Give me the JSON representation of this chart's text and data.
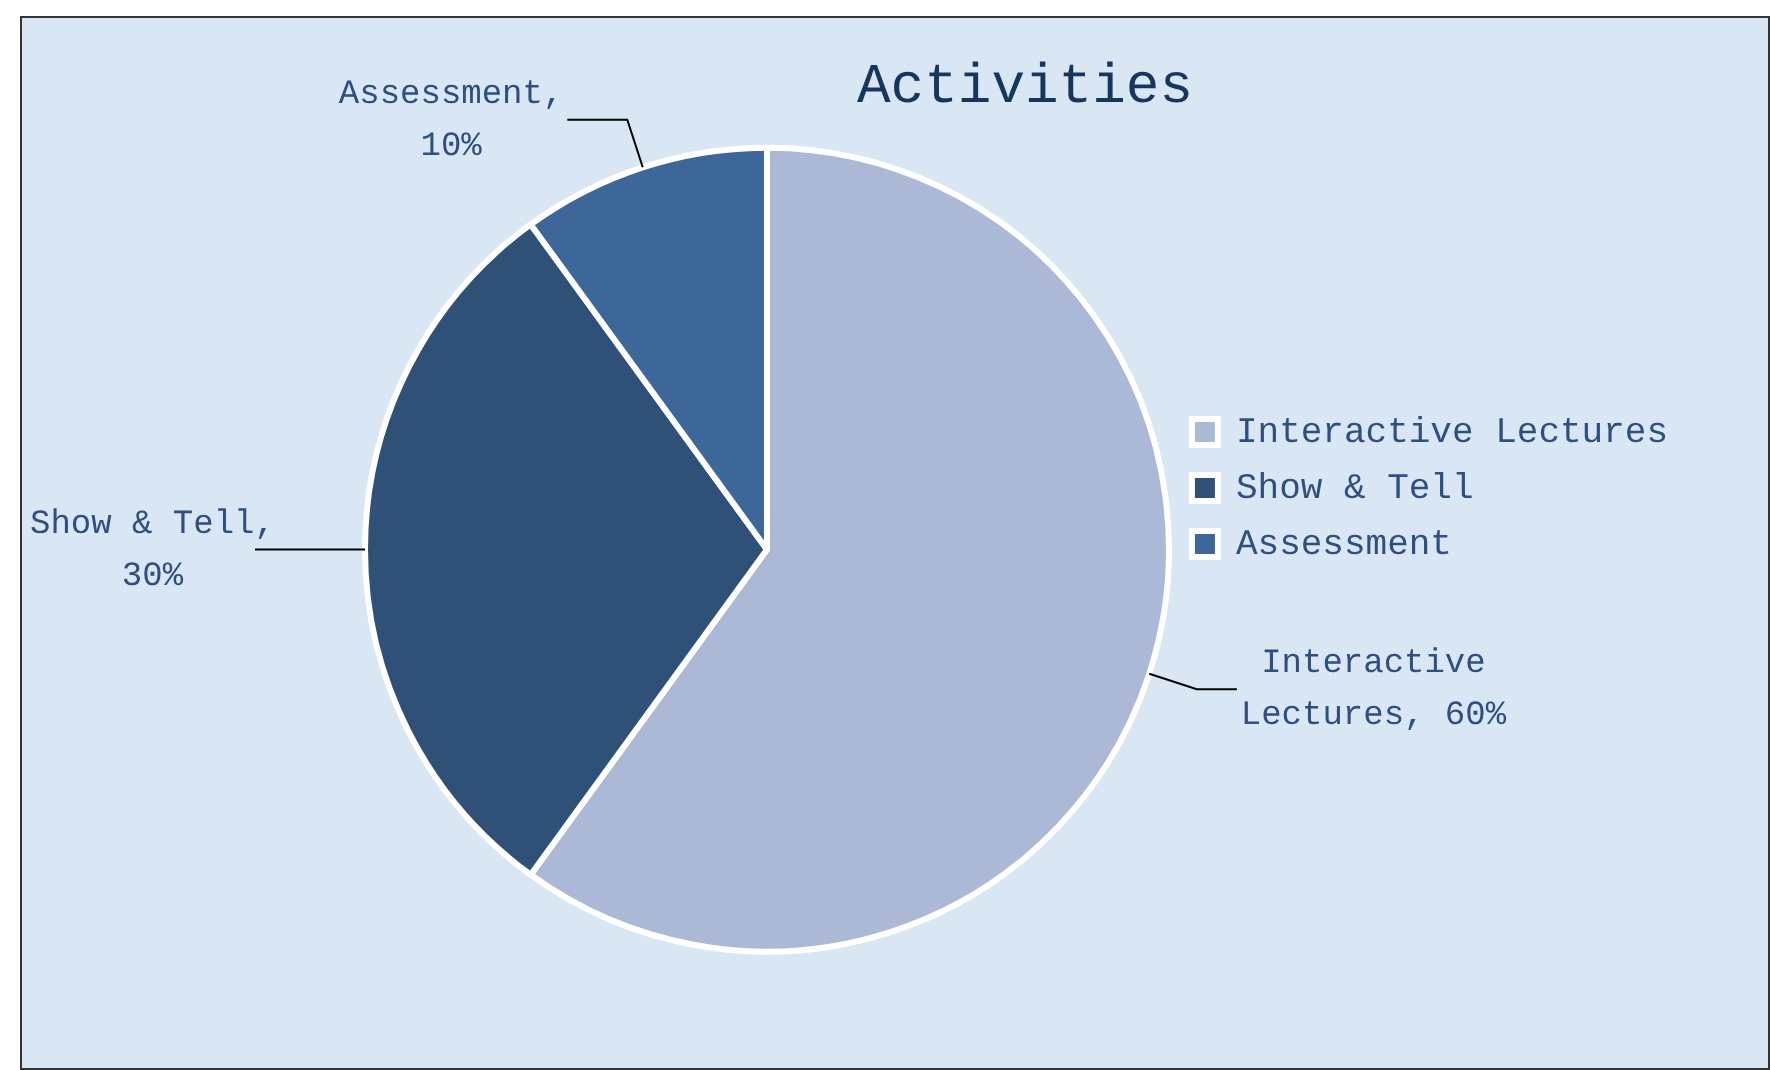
{
  "chart_data": {
    "type": "pie",
    "title": "Activities",
    "categories": [
      "Interactive Lectures",
      "Show & Tell",
      "Assessment"
    ],
    "values": [
      60,
      30,
      10
    ],
    "colors": [
      "#abb9d7",
      "#2f5077",
      "#3d6699"
    ],
    "value_labels": [
      "Interactive Lectures, 60%",
      "Show & Tell, 30%",
      "Assessment, 10%"
    ],
    "legend": "right"
  }
}
